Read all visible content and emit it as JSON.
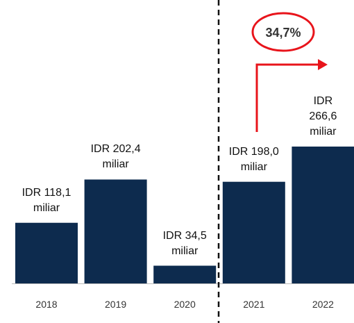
{
  "chart_data": {
    "type": "bar",
    "categories": [
      "2018",
      "2019",
      "2020",
      "2021",
      "2022"
    ],
    "values": [
      118.1,
      202.4,
      34.5,
      198.0,
      266.6
    ],
    "value_labels": [
      "IDR 118,1 miliar",
      "IDR 202,4 miliar",
      "IDR 34,5 miliar",
      "IDR 198,0 miliar",
      "IDR 266,6 miliar"
    ],
    "color": "#0d2b4e",
    "annotation": "34,7%"
  }
}
